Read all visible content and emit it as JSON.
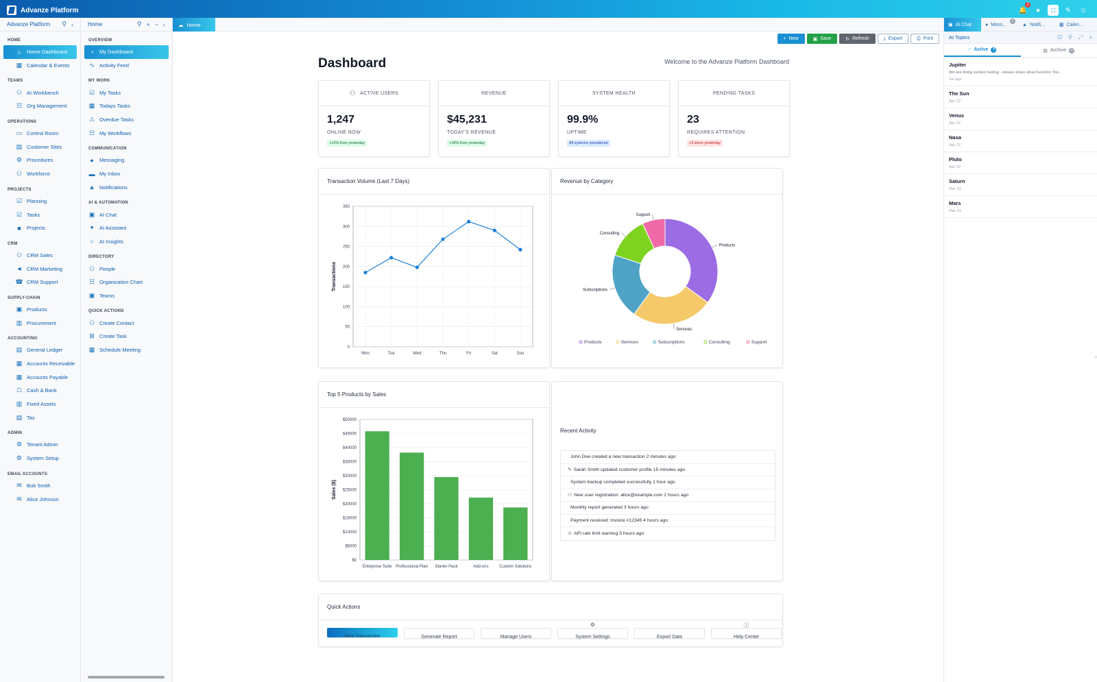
{
  "app": {
    "title": "Advanze Platform",
    "notif_count": "2"
  },
  "nav1": {
    "header": "Advanze Platform",
    "sections": [
      {
        "title": "HOME",
        "items": [
          {
            "label": "Home Dashboard",
            "icon": "home-icon",
            "active": true
          },
          {
            "label": "Calendar & Events",
            "icon": "calendar-icon"
          }
        ]
      },
      {
        "title": "TEAMS",
        "items": [
          {
            "label": "AI Workbench",
            "icon": "users-icon"
          },
          {
            "label": "Org Management",
            "icon": "org-icon"
          }
        ]
      },
      {
        "title": "OPERATIONS",
        "items": [
          {
            "label": "Control Room",
            "icon": "monitor-icon"
          },
          {
            "label": "Customer Sites",
            "icon": "building-icon"
          },
          {
            "label": "Procedures",
            "icon": "gear-icon"
          },
          {
            "label": "Workforce",
            "icon": "users-icon"
          }
        ]
      },
      {
        "title": "PROJECTS",
        "items": [
          {
            "label": "Planning",
            "icon": "checkbox-icon"
          },
          {
            "label": "Tasks",
            "icon": "checkbox-icon"
          },
          {
            "label": "Projects",
            "icon": "folder-icon"
          }
        ]
      },
      {
        "title": "CRM",
        "items": [
          {
            "label": "CRM Sales",
            "icon": "user-plus-icon"
          },
          {
            "label": "CRM Marketing",
            "icon": "megaphone-icon"
          },
          {
            "label": "CRM Support",
            "icon": "headset-icon"
          }
        ]
      },
      {
        "title": "SUPPLY-CHAIN",
        "items": [
          {
            "label": "Products",
            "icon": "box-icon"
          },
          {
            "label": "Procurement",
            "icon": "cart-icon"
          }
        ]
      },
      {
        "title": "ACCOUNTING",
        "items": [
          {
            "label": "General Ledger",
            "icon": "ledger-icon"
          },
          {
            "label": "Accounts Receivable",
            "icon": "receivable-icon"
          },
          {
            "label": "Accounts Payable",
            "icon": "payable-icon"
          },
          {
            "label": "Cash & Bank",
            "icon": "bank-icon"
          },
          {
            "label": "Fixed Assets",
            "icon": "assets-icon"
          },
          {
            "label": "Tax",
            "icon": "tax-icon"
          }
        ]
      },
      {
        "title": "ADMIN",
        "items": [
          {
            "label": "Tenant Admin",
            "icon": "gear-icon"
          },
          {
            "label": "System Setup",
            "icon": "gear-icon"
          }
        ]
      },
      {
        "title": "EMAIL ACCOUNTS",
        "items": [
          {
            "label": "Bob Smith",
            "icon": "mail-icon"
          },
          {
            "label": "Alice Johnson",
            "icon": "mail-icon"
          }
        ]
      }
    ]
  },
  "nav2": {
    "header": "Home",
    "sections": [
      {
        "title": "OVERVIEW",
        "items": [
          {
            "label": "My Dashboard",
            "icon": "dashboard-icon",
            "active": true
          },
          {
            "label": "Activity Feed",
            "icon": "activity-icon"
          }
        ]
      },
      {
        "title": "MY WORK",
        "items": [
          {
            "label": "My Tasks",
            "icon": "checkbox-icon"
          },
          {
            "label": "Todays Tasks",
            "icon": "calendar-icon"
          },
          {
            "label": "Overdue Tasks",
            "icon": "warning-icon"
          },
          {
            "label": "My Workflows",
            "icon": "workflow-icon"
          }
        ]
      },
      {
        "title": "COMMUNICATION",
        "items": [
          {
            "label": "Messaging",
            "icon": "chat-icon"
          },
          {
            "label": "My Inbox",
            "icon": "inbox-icon"
          },
          {
            "label": "Notifications",
            "icon": "bell-icon"
          }
        ]
      },
      {
        "title": "AI & AUTOMATION",
        "items": [
          {
            "label": "AI Chat",
            "icon": "robot-icon"
          },
          {
            "label": "AI Assistant",
            "icon": "sparkle-icon"
          },
          {
            "label": "AI Insights",
            "icon": "lightbulb-icon"
          }
        ]
      },
      {
        "title": "DIRECTORY",
        "items": [
          {
            "label": "People",
            "icon": "users-icon"
          },
          {
            "label": "Organization Chart",
            "icon": "org-icon"
          },
          {
            "label": "Teams",
            "icon": "team-icon"
          }
        ]
      },
      {
        "title": "QUICK ACTIONS",
        "items": [
          {
            "label": "Create Contact",
            "icon": "user-plus-icon"
          },
          {
            "label": "Create Task",
            "icon": "plus-square-icon"
          },
          {
            "label": "Schedule Meeting",
            "icon": "calendar-icon"
          }
        ]
      }
    ]
  },
  "main": {
    "tab": "Home",
    "toolbar": {
      "new": "New",
      "save": "Save",
      "refresh": "Refresh",
      "export": "Export",
      "print": "Print"
    },
    "title": "Dashboard",
    "welcome": "Welcome to the Advanze Platform Dashboard",
    "stats": [
      {
        "head": "ACTIVE USERS",
        "value": "1,247",
        "sub": "ONLINE NOW",
        "pill": "+12% from yesterday",
        "tone": "green",
        "icon": "users-icon"
      },
      {
        "head": "REVENUE",
        "value": "$45,231",
        "sub": "TODAY'S REVENUE",
        "pill": "+18% from yesterday",
        "tone": "green"
      },
      {
        "head": "SYSTEM HEALTH",
        "value": "99.9%",
        "sub": "UPTIME",
        "pill": "All systems operational",
        "tone": "blue"
      },
      {
        "head": "PENDING TASKS",
        "value": "23",
        "sub": "REQUIRES ATTENTION",
        "pill": "+3 since yesterday",
        "tone": "red"
      }
    ],
    "activity_title": "Recent Activity",
    "activity": [
      {
        "text": "John Doe created a new transaction 2 minutes ago",
        "icon": ""
      },
      {
        "text": "Sarah Smith updated customer profile 15 minutes ago",
        "icon": "pencil-icon"
      },
      {
        "text": "System backup completed successfully 1 hour ago",
        "icon": ""
      },
      {
        "text": "New user registration: alice@example.com 2 hours ago",
        "icon": "users-icon"
      },
      {
        "text": "Monthly report generated 3 hours ago",
        "icon": ""
      },
      {
        "text": "Payment received: Invoice #12345 4 hours ago",
        "icon": ""
      },
      {
        "text": "API rate limit warning 5 hours ago",
        "icon": "warning-icon"
      }
    ],
    "quick_title": "Quick Actions",
    "quick": [
      {
        "label": "New Transaction",
        "icon": ""
      },
      {
        "label": "Generate Report",
        "icon": ""
      },
      {
        "label": "Manage Users",
        "icon": ""
      },
      {
        "label": "System Settings",
        "icon": "gear-icon"
      },
      {
        "label": "Export Data",
        "icon": ""
      },
      {
        "label": "Help Center",
        "icon": "help-icon"
      }
    ]
  },
  "chart_data": [
    {
      "type": "line",
      "title": "Transaction Volume (Last 7 Days)",
      "ylabel": "Transactions",
      "categories": [
        "Mon",
        "Tue",
        "Wed",
        "Thu",
        "Fri",
        "Sat",
        "Sun"
      ],
      "values": [
        185,
        222,
        198,
        268,
        312,
        290,
        242
      ],
      "ylim": [
        0,
        350
      ],
      "yticks": [
        0,
        50,
        100,
        150,
        200,
        250,
        300,
        350
      ],
      "grid": true,
      "color": "#1a7fd8"
    },
    {
      "type": "pie",
      "title": "Revenue by Category",
      "categories": [
        "Products",
        "Services",
        "Subscriptions",
        "Consulting",
        "Support"
      ],
      "values": [
        35,
        25,
        20,
        13,
        7
      ],
      "colors": [
        "#9b6ce3",
        "#f5c96a",
        "#4fa3c7",
        "#7ed321",
        "#f06aa7"
      ],
      "legend": "bottom"
    },
    {
      "type": "bar",
      "title": "Top 5 Products by Sales",
      "ylabel": "Sales ($)",
      "categories": [
        "Enterprise Suite",
        "Professional Plan",
        "Starter Pack",
        "Add-ons",
        "Custom Solutions"
      ],
      "values": [
        45800,
        38200,
        29500,
        22200,
        18700
      ],
      "ylim": [
        0,
        50000
      ],
      "yticks": [
        "$0",
        "$5000",
        "$10000",
        "$15000",
        "$20000",
        "$25000",
        "$30000",
        "$35000",
        "$40000",
        "$45000",
        "$50000"
      ],
      "grid": true,
      "color": "#4caf50"
    }
  ],
  "rpanel": {
    "tabs": [
      {
        "label": "AI Chat",
        "icon": "robot-icon",
        "active": true
      },
      {
        "label": "Mess...",
        "icon": "chat-icon",
        "badge": "1"
      },
      {
        "label": "Notifi...",
        "icon": "bell-icon"
      },
      {
        "label": "Calen...",
        "icon": "calendar-icon"
      }
    ],
    "header": "AI Topics",
    "subtabs": [
      {
        "label": "Active",
        "count": "7",
        "active": true
      },
      {
        "label": "Archive",
        "count": "0"
      }
    ],
    "topics": [
      {
        "name": "Jupiter",
        "desc": "We are doing system testing - please share what Function Too...",
        "date": "2w ago"
      },
      {
        "name": "The Sun",
        "desc": "",
        "date": "Apr 22"
      },
      {
        "name": "Venus",
        "desc": "",
        "date": "Apr 22"
      },
      {
        "name": "Nasa",
        "desc": "",
        "date": "Apr 22"
      },
      {
        "name": "Pluto",
        "desc": "",
        "date": "Apr 22"
      },
      {
        "name": "Saturn",
        "desc": "",
        "date": "Mar 31"
      },
      {
        "name": "Mars",
        "desc": "",
        "date": "Mar 31"
      }
    ]
  }
}
